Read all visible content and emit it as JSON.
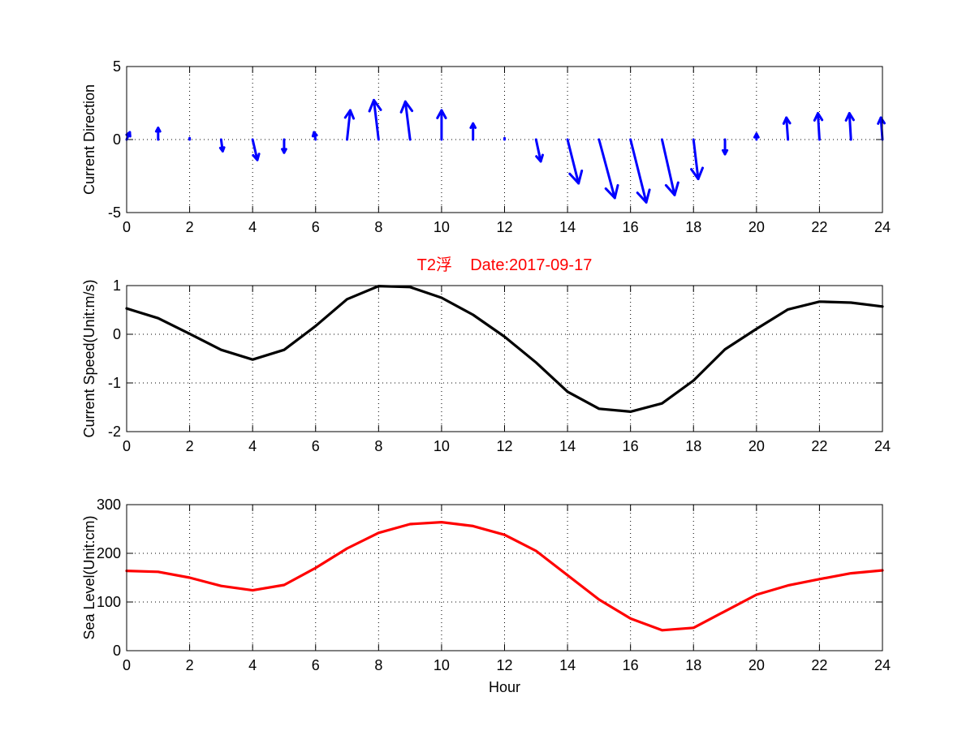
{
  "chart_data": [
    {
      "type": "quiver",
      "ylabel": "Current Direction",
      "xlim": [
        0,
        24
      ],
      "ylim": [
        -5,
        5
      ],
      "xticks": [
        0,
        2,
        4,
        6,
        8,
        10,
        12,
        14,
        16,
        18,
        20,
        22,
        24
      ],
      "yticks": [
        -5,
        0,
        5
      ],
      "grid": true,
      "color": "#0000ff",
      "series": [
        {
          "x": [
            0,
            1,
            2,
            3,
            4,
            5,
            6,
            7,
            8,
            9,
            10,
            11,
            12,
            13,
            14,
            15,
            16,
            17,
            18,
            19,
            20,
            21,
            22,
            23,
            24
          ],
          "u": [
            0.1,
            0.0,
            0.0,
            0.05,
            0.15,
            0.0,
            -0.05,
            0.1,
            -0.15,
            -0.15,
            0.0,
            0.0,
            0.0,
            0.15,
            0.35,
            0.5,
            0.5,
            0.4,
            0.15,
            0.0,
            0.0,
            -0.05,
            -0.05,
            -0.05,
            -0.05
          ],
          "v": [
            0.5,
            0.8,
            0.1,
            -0.8,
            -1.4,
            -0.9,
            0.5,
            2.0,
            2.7,
            2.6,
            2.0,
            1.1,
            0.1,
            -1.5,
            -3.0,
            -4.0,
            -4.3,
            -3.8,
            -2.7,
            -1.0,
            0.4,
            1.5,
            1.8,
            1.8,
            1.5
          ]
        }
      ]
    },
    {
      "type": "line",
      "title": "T2浮    Date:2017-09-17",
      "ylabel": "Current Speed(Unit:m/s)",
      "xlim": [
        0,
        24
      ],
      "ylim": [
        -2,
        1
      ],
      "xticks": [
        0,
        2,
        4,
        6,
        8,
        10,
        12,
        14,
        16,
        18,
        20,
        22,
        24
      ],
      "yticks": [
        -2,
        -1,
        0,
        1
      ],
      "grid": true,
      "series": [
        {
          "color": "#000000",
          "x": [
            0,
            1,
            2,
            3,
            4,
            5,
            6,
            7,
            8,
            9,
            10,
            11,
            12,
            13,
            14,
            15,
            16,
            17,
            18,
            19,
            20,
            21,
            22,
            23,
            24
          ],
          "y": [
            0.53,
            0.33,
            0.01,
            -0.32,
            -0.52,
            -0.32,
            0.17,
            0.72,
            0.99,
            0.97,
            0.75,
            0.4,
            -0.05,
            -0.58,
            -1.18,
            -1.53,
            -1.59,
            -1.42,
            -0.95,
            -0.31,
            0.11,
            0.51,
            0.67,
            0.65,
            0.57
          ]
        }
      ]
    },
    {
      "type": "line",
      "xlabel": "Hour",
      "ylabel": "Sea Level(Unit:cm)",
      "xlim": [
        0,
        24
      ],
      "ylim": [
        0,
        300
      ],
      "xticks": [
        0,
        2,
        4,
        6,
        8,
        10,
        12,
        14,
        16,
        18,
        20,
        22,
        24
      ],
      "yticks": [
        0,
        100,
        200,
        300
      ],
      "grid": true,
      "series": [
        {
          "color": "#ff0000",
          "x": [
            0,
            1,
            2,
            3,
            4,
            5,
            6,
            7,
            8,
            9,
            10,
            11,
            12,
            13,
            14,
            15,
            16,
            17,
            18,
            19,
            20,
            21,
            22,
            23,
            24
          ],
          "y": [
            164,
            162,
            150,
            133,
            124,
            135,
            170,
            210,
            242,
            260,
            264,
            256,
            238,
            205,
            155,
            105,
            66,
            42,
            47,
            81,
            115,
            134,
            147,
            159,
            165
          ]
        }
      ]
    }
  ],
  "title_color": "#ff0000"
}
